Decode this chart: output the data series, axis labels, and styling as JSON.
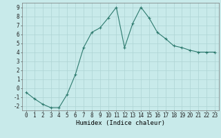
{
  "x": [
    0,
    1,
    2,
    3,
    4,
    5,
    6,
    7,
    8,
    9,
    10,
    11,
    12,
    13,
    14,
    15,
    16,
    17,
    18,
    19,
    20,
    21,
    22,
    23
  ],
  "y": [
    -0.5,
    -1.2,
    -1.8,
    -2.2,
    -2.2,
    -0.7,
    1.5,
    4.5,
    6.2,
    6.7,
    7.8,
    9.0,
    4.5,
    7.2,
    9.0,
    7.8,
    6.2,
    5.5,
    4.7,
    4.5,
    4.2,
    4.0,
    4.0,
    4.0
  ],
  "line_color": "#2d7a6e",
  "marker": "+",
  "marker_size": 3.5,
  "marker_linewidth": 0.8,
  "bg_color": "#c8eaea",
  "grid_color": "#aed4d4",
  "xlabel": "Humidex (Indice chaleur)",
  "xlim": [
    -0.5,
    23.5
  ],
  "ylim": [
    -2.5,
    9.5
  ],
  "yticks": [
    -2,
    -1,
    0,
    1,
    2,
    3,
    4,
    5,
    6,
    7,
    8,
    9
  ],
  "xticks": [
    0,
    1,
    2,
    3,
    4,
    5,
    6,
    7,
    8,
    9,
    10,
    11,
    12,
    13,
    14,
    15,
    16,
    17,
    18,
    19,
    20,
    21,
    22,
    23
  ],
  "tick_fontsize": 5.5,
  "xlabel_fontsize": 6.5,
  "linewidth": 0.8
}
